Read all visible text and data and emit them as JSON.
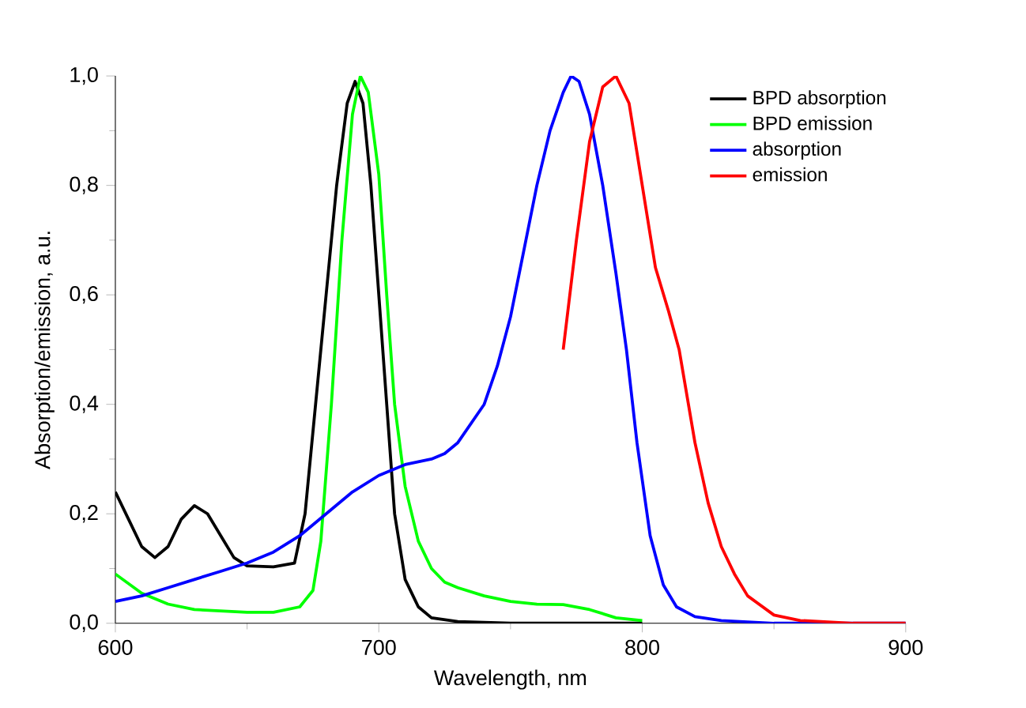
{
  "chart_data": {
    "type": "line",
    "xlabel": "Wavelength, nm",
    "ylabel": "Absorption/emission, a.u.",
    "xlim": [
      600,
      900
    ],
    "xticks": [
      600,
      700,
      800,
      900
    ],
    "ylim": [
      0,
      1
    ],
    "yticks": [
      {
        "value": 0,
        "label": "0,0"
      },
      {
        "value": 0.2,
        "label": "0,2"
      },
      {
        "value": 0.4,
        "label": "0,4"
      },
      {
        "value": 0.6,
        "label": "0,6"
      },
      {
        "value": 0.8,
        "label": "0,8"
      },
      {
        "value": 1,
        "label": "1,0"
      }
    ],
    "grid": false,
    "legend": "top right",
    "marker": "none",
    "line_style": "solid",
    "series": [
      {
        "name": "BPD absorption",
        "color": "#000000",
        "x": [
          600,
          605,
          610,
          615,
          620,
          625,
          630,
          635,
          640,
          645,
          650,
          660,
          668,
          672,
          676,
          680,
          684,
          688,
          691,
          694,
          697,
          700,
          703,
          706,
          710,
          715,
          720,
          730,
          750,
          800
        ],
        "values": [
          0.24,
          0.19,
          0.14,
          0.12,
          0.14,
          0.19,
          0.215,
          0.2,
          0.16,
          0.12,
          0.105,
          0.103,
          0.11,
          0.2,
          0.4,
          0.6,
          0.8,
          0.95,
          0.99,
          0.95,
          0.8,
          0.6,
          0.4,
          0.2,
          0.08,
          0.03,
          0.01,
          0.003,
          0,
          0
        ]
      },
      {
        "name": "BPD emission",
        "color": "#00ff00",
        "x": [
          600,
          610,
          620,
          630,
          650,
          660,
          670,
          675,
          678,
          682,
          686,
          690,
          693,
          696,
          700,
          703,
          706,
          710,
          715,
          720,
          725,
          730,
          740,
          750,
          760,
          770,
          780,
          790,
          800
        ],
        "values": [
          0.09,
          0.055,
          0.035,
          0.025,
          0.02,
          0.02,
          0.03,
          0.06,
          0.15,
          0.4,
          0.7,
          0.93,
          1.0,
          0.97,
          0.82,
          0.6,
          0.4,
          0.25,
          0.15,
          0.1,
          0.075,
          0.065,
          0.05,
          0.04,
          0.035,
          0.034,
          0.025,
          0.01,
          0.005
        ]
      },
      {
        "name": "absorption",
        "color": "#0000ff",
        "x": [
          600,
          610,
          620,
          630,
          640,
          650,
          660,
          670,
          680,
          690,
          700,
          710,
          720,
          725,
          730,
          740,
          745,
          750,
          755,
          760,
          765,
          770,
          773,
          776,
          780,
          785,
          790,
          794,
          798,
          803,
          808,
          813,
          820,
          830,
          850,
          900
        ],
        "values": [
          0.04,
          0.05,
          0.065,
          0.08,
          0.095,
          0.11,
          0.13,
          0.16,
          0.2,
          0.24,
          0.27,
          0.29,
          0.3,
          0.31,
          0.33,
          0.4,
          0.47,
          0.56,
          0.68,
          0.8,
          0.9,
          0.97,
          1.0,
          0.99,
          0.93,
          0.8,
          0.64,
          0.5,
          0.33,
          0.16,
          0.07,
          0.03,
          0.012,
          0.005,
          0,
          0
        ]
      },
      {
        "name": "emission",
        "color": "#ff0000",
        "x": [
          770,
          775,
          780,
          785,
          790,
          795,
          800,
          805,
          810,
          814,
          820,
          825,
          830,
          835,
          840,
          850,
          860,
          880,
          900
        ],
        "values": [
          0.5,
          0.7,
          0.88,
          0.98,
          1.0,
          0.95,
          0.8,
          0.65,
          0.57,
          0.5,
          0.33,
          0.22,
          0.14,
          0.09,
          0.05,
          0.015,
          0.005,
          0,
          0
        ]
      }
    ]
  }
}
